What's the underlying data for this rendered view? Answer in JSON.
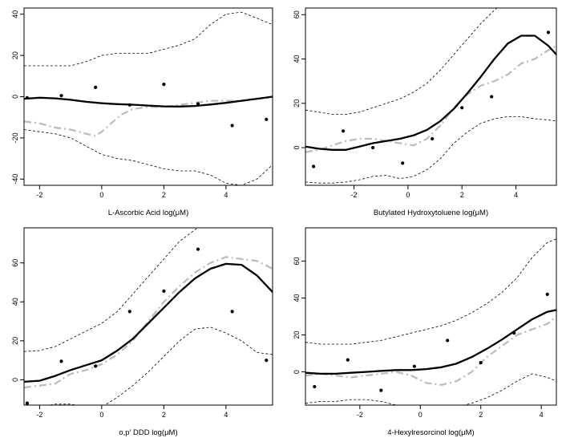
{
  "chart_data": [
    {
      "type": "line",
      "xlabel": "L-Ascorbic Acid log(μM)",
      "xlim": [
        -2.5,
        5.5
      ],
      "ylim": [
        -43,
        43
      ],
      "xticks": [
        -2,
        0,
        2,
        4
      ],
      "yticks": [
        -40,
        -20,
        0,
        20,
        40
      ],
      "points": {
        "x": [
          -2.4,
          -1.3,
          -0.2,
          0.9,
          2.0,
          3.1,
          4.2,
          5.3
        ],
        "y": [
          -0.5,
          0.5,
          4.5,
          -4.0,
          6.0,
          -3.5,
          -14.0,
          -11.0
        ]
      },
      "series": [
        {
          "name": "fit",
          "x": [
            -2.5,
            -2.0,
            -1.5,
            -1.0,
            -0.5,
            0.0,
            0.5,
            1.0,
            1.5,
            2.0,
            2.5,
            3.0,
            3.5,
            4.0,
            4.5,
            5.0,
            5.5
          ],
          "y": [
            -1.0,
            -0.5,
            -0.8,
            -1.5,
            -2.5,
            -3.2,
            -3.6,
            -3.9,
            -4.3,
            -4.7,
            -4.8,
            -4.5,
            -3.8,
            -3.0,
            -2.0,
            -1.0,
            0.0
          ]
        },
        {
          "name": "upper",
          "x": [
            -2.5,
            -2.0,
            -1.5,
            -1.0,
            -0.5,
            0.0,
            0.5,
            1.0,
            1.5,
            2.0,
            2.5,
            3.0,
            3.5,
            4.0,
            4.5,
            5.0,
            5.5
          ],
          "y": [
            15,
            15,
            15,
            15,
            17,
            20,
            21,
            21,
            21,
            23,
            25,
            28,
            35,
            40,
            41,
            38,
            35
          ]
        },
        {
          "name": "lower",
          "x": [
            -2.5,
            -2.0,
            -1.5,
            -1.0,
            -0.5,
            0.0,
            0.5,
            1.0,
            1.5,
            2.0,
            2.5,
            3.0,
            3.5,
            4.0,
            4.5,
            5.0,
            5.5
          ],
          "y": [
            -16,
            -17,
            -18,
            -20,
            -24,
            -28,
            -30,
            -31,
            -33,
            -35,
            -36,
            -36,
            -38,
            -42,
            -43,
            -40,
            -33
          ]
        },
        {
          "name": "reference",
          "x": [
            -2.5,
            -2.0,
            -1.5,
            -1.0,
            -0.5,
            -0.2,
            0.0,
            0.3,
            0.6,
            1.0,
            1.5,
            2.0,
            2.5,
            3.0,
            3.5,
            4.0,
            4.5,
            5.0,
            5.5
          ],
          "y": [
            -12,
            -13,
            -15,
            -16,
            -18,
            -19,
            -17,
            -13,
            -9,
            -6,
            -5,
            -5,
            -4,
            -3,
            -2,
            -2,
            -2,
            -1,
            -0.5
          ]
        }
      ]
    },
    {
      "type": "line",
      "xlabel": "Butylated Hydroxytoluene log(μM)",
      "xlim": [
        -3.8,
        5.5
      ],
      "ylim": [
        -17,
        63
      ],
      "xticks": [
        -2,
        0,
        2,
        4
      ],
      "yticks": [
        0,
        20,
        40,
        60
      ],
      "points": {
        "x": [
          -3.5,
          -2.4,
          -1.3,
          -0.2,
          0.9,
          2.0,
          3.1,
          5.2
        ],
        "y": [
          -8.5,
          7.5,
          0.0,
          -7.0,
          4.0,
          18.0,
          23.0,
          52.0
        ]
      },
      "series": [
        {
          "name": "fit",
          "x": [
            -3.8,
            -3.3,
            -2.8,
            -2.3,
            -1.8,
            -1.3,
            -0.8,
            -0.3,
            0.2,
            0.7,
            1.2,
            1.7,
            2.2,
            2.7,
            3.2,
            3.7,
            4.2,
            4.7,
            5.2,
            5.5
          ],
          "y": [
            0.5,
            -0.5,
            -1.0,
            -1.0,
            0.5,
            2.0,
            3.0,
            4.0,
            5.5,
            8.0,
            12.0,
            17.5,
            24.5,
            32.0,
            40.0,
            47.0,
            50.5,
            50.5,
            46.0,
            42.0
          ]
        },
        {
          "name": "upper",
          "x": [
            -3.8,
            -3.3,
            -2.8,
            -2.3,
            -1.8,
            -1.3,
            -0.8,
            -0.3,
            0.2,
            0.7,
            1.2,
            1.7,
            2.2,
            2.7,
            3.2,
            3.5
          ],
          "y": [
            17,
            16,
            15,
            15,
            16,
            18,
            20,
            22,
            25,
            29,
            35,
            42,
            49,
            56,
            62,
            65
          ]
        },
        {
          "name": "lower",
          "x": [
            -3.8,
            -3.3,
            -2.8,
            -2.3,
            -1.8,
            -1.3,
            -0.8,
            -0.3,
            0.2,
            0.7,
            1.2,
            1.7,
            2.2,
            2.7,
            3.2,
            3.7,
            4.2,
            4.7,
            5.2,
            5.5
          ],
          "y": [
            -15.5,
            -16,
            -16,
            -15.5,
            -14.5,
            -13,
            -12.5,
            -14,
            -13,
            -10,
            -5,
            2,
            7,
            11,
            13,
            14,
            14,
            13,
            12.5,
            12
          ]
        },
        {
          "name": "reference",
          "x": [
            -3.8,
            -3.3,
            -2.8,
            -2.3,
            -1.8,
            -1.3,
            -0.8,
            -0.3,
            0.2,
            0.7,
            1.2,
            1.7,
            2.2,
            2.7,
            3.2,
            3.7,
            4.2,
            4.7,
            5.2,
            5.5
          ],
          "y": [
            -2,
            -1,
            1,
            3,
            4,
            4,
            3,
            2,
            1,
            4,
            10,
            18,
            24,
            28,
            30,
            33,
            38,
            40,
            44,
            46
          ]
        }
      ]
    },
    {
      "type": "line",
      "xlabel": "o,p′ DDD   log(μM)",
      "xlim": [
        -2.5,
        5.5
      ],
      "ylim": [
        -13,
        78
      ],
      "xticks": [
        -2,
        0,
        2,
        4
      ],
      "yticks": [
        0,
        20,
        40,
        60
      ],
      "points": {
        "x": [
          -2.4,
          -1.3,
          -0.2,
          0.9,
          2.0,
          3.1,
          4.2,
          5.3
        ],
        "y": [
          -12.0,
          9.5,
          7.0,
          35.0,
          45.5,
          67.0,
          35.0,
          10.0
        ]
      },
      "series": [
        {
          "name": "fit",
          "x": [
            -2.5,
            -2.0,
            -1.5,
            -1.0,
            -0.5,
            0.0,
            0.5,
            1.0,
            1.5,
            2.0,
            2.5,
            3.0,
            3.5,
            4.0,
            4.5,
            5.0,
            5.5
          ],
          "y": [
            -1.0,
            -0.5,
            2.0,
            5.0,
            7.5,
            10.0,
            15.0,
            21.0,
            29.0,
            37.0,
            45.0,
            52.0,
            57.0,
            59.5,
            59.0,
            53.5,
            45.0
          ]
        },
        {
          "name": "upper",
          "x": [
            -2.5,
            -2.0,
            -1.5,
            -1.0,
            -0.5,
            0.0,
            0.5,
            1.0,
            1.5,
            2.0,
            2.5,
            3.0,
            3.3
          ],
          "y": [
            14.5,
            15,
            17,
            21,
            25,
            29,
            35,
            44,
            53,
            62,
            71,
            77,
            80
          ]
        },
        {
          "name": "lower",
          "x": [
            -2.5,
            -2.0,
            -1.5,
            -1.0,
            -0.5,
            0.0,
            0.5,
            1.0,
            1.5,
            2.0,
            2.5,
            3.0,
            3.5,
            4.0,
            4.5,
            5.0,
            5.5
          ],
          "y": [
            -14,
            -14,
            -12.5,
            -12.5,
            -14,
            -14,
            -9,
            -3,
            4,
            12,
            20,
            26,
            27,
            24,
            20,
            14,
            13
          ]
        },
        {
          "name": "reference",
          "x": [
            -2.5,
            -2.0,
            -1.5,
            -1.0,
            -0.5,
            0.0,
            0.5,
            1.0,
            1.5,
            2.0,
            2.5,
            3.0,
            3.5,
            4.0,
            4.5,
            5.0,
            5.5
          ],
          "y": [
            -4,
            -3,
            -2,
            3,
            5,
            8,
            13,
            20,
            30,
            40,
            48,
            55,
            60,
            63,
            62,
            61,
            57
          ]
        }
      ]
    },
    {
      "type": "line",
      "xlabel": "4-Hexylresorcinol log(μM)",
      "xlim": [
        -3.8,
        4.5
      ],
      "ylim": [
        -18,
        78
      ],
      "xticks": [
        -2,
        0,
        2,
        4
      ],
      "yticks": [
        0,
        20,
        40,
        60
      ],
      "points": {
        "x": [
          -3.5,
          -2.4,
          -1.3,
          -0.2,
          0.9,
          2.0,
          3.1,
          4.2
        ],
        "y": [
          -8.0,
          6.5,
          -10.0,
          3.0,
          17.0,
          5.0,
          21.0,
          42.0
        ]
      },
      "series": [
        {
          "name": "fit",
          "x": [
            -3.8,
            -3.3,
            -2.8,
            -2.3,
            -1.8,
            -1.3,
            -0.8,
            -0.3,
            0.2,
            0.7,
            1.2,
            1.7,
            2.2,
            2.7,
            3.2,
            3.7,
            4.2,
            4.5
          ],
          "y": [
            -0.5,
            -1.0,
            -1.0,
            -0.5,
            0.0,
            0.5,
            1.0,
            1.0,
            1.5,
            2.5,
            4.5,
            8.0,
            12.5,
            17.5,
            23.0,
            28.5,
            32.5,
            33.5
          ]
        },
        {
          "name": "upper",
          "x": [
            -3.8,
            -3.3,
            -2.8,
            -2.3,
            -1.8,
            -1.3,
            -0.8,
            -0.3,
            0.2,
            0.7,
            1.2,
            1.7,
            2.2,
            2.7,
            3.2,
            3.7,
            4.2,
            4.5
          ],
          "y": [
            16,
            15,
            15,
            15,
            16,
            17,
            19,
            21,
            23,
            25,
            28,
            32,
            37,
            43,
            51,
            62,
            70,
            72
          ]
        },
        {
          "name": "lower",
          "x": [
            -3.8,
            -3.3,
            -2.8,
            -2.3,
            -1.8,
            -1.3,
            -0.8,
            -0.3,
            0.2,
            0.7,
            1.2,
            1.7,
            2.2,
            2.7,
            3.2,
            3.7,
            4.2,
            4.5
          ],
          "y": [
            -17,
            -16,
            -16,
            -15,
            -15,
            -16,
            -18,
            -19,
            -20,
            -20,
            -19,
            -17,
            -14,
            -10,
            -5,
            -1,
            -3,
            -5
          ]
        },
        {
          "name": "reference",
          "x": [
            -3.8,
            -3.3,
            -2.8,
            -2.3,
            -1.8,
            -1.3,
            -0.8,
            -0.3,
            0.2,
            0.7,
            1.2,
            1.7,
            2.2,
            2.7,
            3.2,
            3.7,
            4.2,
            4.5
          ],
          "y": [
            -2,
            -1,
            -2,
            -3,
            -2,
            -1,
            0,
            -2,
            -6,
            -7,
            -5,
            0,
            8,
            14,
            20,
            23,
            26,
            30
          ]
        }
      ]
    }
  ]
}
